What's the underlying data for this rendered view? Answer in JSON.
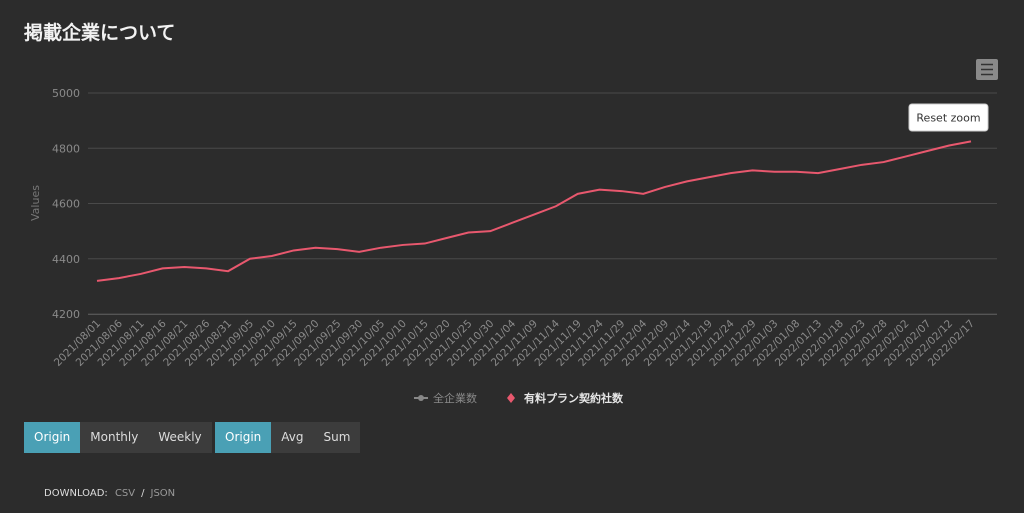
{
  "header": {
    "title": "掲載企業について"
  },
  "chart_data": {
    "type": "line",
    "y_label": "Values",
    "categories": [
      "2021/08/01",
      "2021/08/06",
      "2021/08/11",
      "2021/08/16",
      "2021/08/21",
      "2021/08/26",
      "2021/08/31",
      "2021/09/05",
      "2021/09/10",
      "2021/09/15",
      "2021/09/20",
      "2021/09/25",
      "2021/09/30",
      "2021/10/05",
      "2021/10/10",
      "2021/10/15",
      "2021/10/20",
      "2021/10/25",
      "2021/10/30",
      "2021/11/04",
      "2021/11/09",
      "2021/11/14",
      "2021/11/19",
      "2021/11/24",
      "2021/11/29",
      "2021/12/04",
      "2021/12/09",
      "2021/12/14",
      "2021/12/19",
      "2021/12/24",
      "2021/12/29",
      "2022/01/03",
      "2022/01/08",
      "2022/01/13",
      "2022/01/18",
      "2022/01/23",
      "2022/01/28",
      "2022/02/02",
      "2022/02/07",
      "2022/02/12",
      "2022/02/17"
    ],
    "series": [
      {
        "name": "全企業数",
        "color": "#888888",
        "visible": false,
        "values": [
          null,
          null,
          null,
          null,
          null,
          null,
          null,
          null,
          null,
          null,
          null,
          null,
          null,
          null,
          null,
          null,
          null,
          null,
          null,
          null,
          null,
          null,
          null,
          null,
          null,
          null,
          null,
          null,
          null,
          null,
          null,
          null,
          null,
          null,
          null,
          null,
          null,
          null,
          null,
          null,
          null
        ]
      },
      {
        "name": "有料プラン契約社数",
        "color": "#e8586e",
        "visible": true,
        "values": [
          4320,
          4330,
          4345,
          4365,
          4370,
          4365,
          4355,
          4400,
          4410,
          4430,
          4440,
          4435,
          4425,
          4440,
          4450,
          4455,
          4475,
          4495,
          4500,
          4530,
          4560,
          4590,
          4635,
          4650,
          4645,
          4635,
          4660,
          4680,
          4695,
          4710,
          4720,
          4715,
          4715,
          4710,
          4725,
          4740,
          4750,
          4770,
          4790,
          4810,
          4825
        ]
      }
    ],
    "ylim": [
      4200,
      5000
    ],
    "yticks": [
      4200,
      4400,
      4600,
      4800,
      5000
    ],
    "grid": true
  },
  "controls": {
    "reset_zoom": "Reset zoom",
    "period": {
      "options": [
        "Origin",
        "Monthly",
        "Weekly"
      ],
      "active": 0
    },
    "aggregate": {
      "options": [
        "Origin",
        "Avg",
        "Sum"
      ],
      "active": 0
    }
  },
  "download": {
    "label": "DOWNLOAD:",
    "links": [
      "CSV",
      "JSON"
    ],
    "separator": "/"
  }
}
